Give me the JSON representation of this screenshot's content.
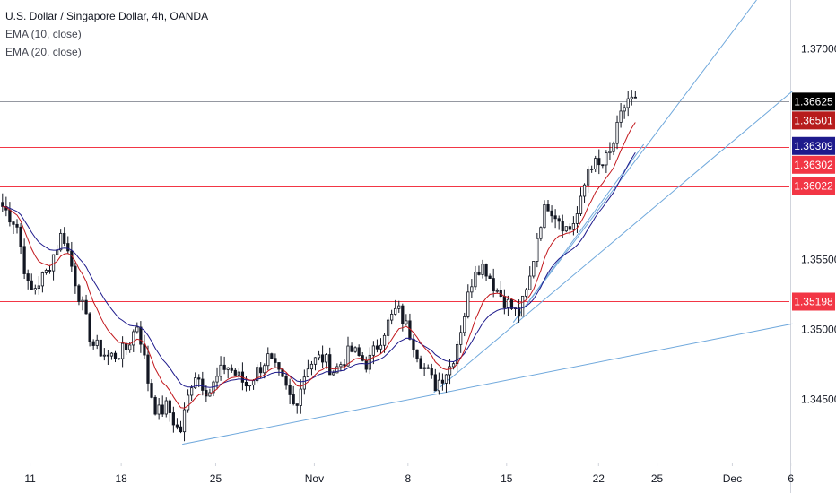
{
  "legend": {
    "title": "U.S. Dollar / Singapore Dollar, 4h, OANDA",
    "ema10": "EMA (10, close)",
    "ema20": "EMA (20, close)"
  },
  "chart_data": {
    "type": "candlestick",
    "symbol": "USD/SGD",
    "timeframe": "4h",
    "source": "OANDA",
    "ylim": [
      1.3405,
      1.3735
    ],
    "y_ticks": [
      "1.37000",
      "1.35500",
      "1.35000",
      "1.34500"
    ],
    "y_tick_values": [
      1.37,
      1.355,
      1.35,
      1.345
    ],
    "x_ticks": [
      "11",
      "18",
      "25",
      "Nov",
      "8",
      "15",
      "22",
      "25",
      "Dec",
      "6"
    ],
    "grid": false,
    "colors": {
      "up": "#ffffff",
      "down": "#131722",
      "ema10": "#c2181d",
      "ema20": "#1e1a8c",
      "level": "#f23645",
      "trendline": "#6fa8dc",
      "last_price": "#000000"
    },
    "price_labels": [
      {
        "text": "1.36625",
        "value": 1.36625,
        "bg": "#000000"
      },
      {
        "text": "1.36501",
        "value": 1.36501,
        "bg": "#b71c1c"
      },
      {
        "text": "1.36309",
        "value": 1.36309,
        "bg": "#1e1a8c"
      },
      {
        "text": "1.36302",
        "value": 1.36302,
        "bg": "#f23645"
      },
      {
        "text": "1.36022",
        "value": 1.36022,
        "bg": "#f23645"
      },
      {
        "text": "1.35198",
        "value": 1.35198,
        "bg": "#f23645"
      }
    ],
    "horizontal_levels": [
      1.36302,
      1.36022,
      1.35198
    ],
    "last_price": 1.36625,
    "trendlines": [
      {
        "from": [
          0.218,
          1.3418
        ],
        "to": [
          0.948,
          1.3504
        ]
      },
      {
        "from": [
          0.519,
          1.3455
        ],
        "to": [
          0.948,
          1.367
        ]
      },
      {
        "from": [
          0.614,
          1.3505
        ],
        "to": [
          0.905,
          1.3735
        ]
      },
      {
        "from": [
          0.614,
          1.3505
        ],
        "to": [
          0.77,
          1.3632
        ]
      }
    ],
    "anchors": [
      [
        0.0,
        1.359
      ],
      [
        0.02,
        1.3575
      ],
      [
        0.035,
        1.3525
      ],
      [
        0.055,
        1.354
      ],
      [
        0.075,
        1.357
      ],
      [
        0.09,
        1.3535
      ],
      [
        0.11,
        1.349
      ],
      [
        0.13,
        1.348
      ],
      [
        0.15,
        1.3485
      ],
      [
        0.165,
        1.3505
      ],
      [
        0.178,
        1.346
      ],
      [
        0.188,
        1.344
      ],
      [
        0.2,
        1.3445
      ],
      [
        0.215,
        1.3425
      ],
      [
        0.232,
        1.347
      ],
      [
        0.25,
        1.3455
      ],
      [
        0.27,
        1.3475
      ],
      [
        0.295,
        1.346
      ],
      [
        0.32,
        1.348
      ],
      [
        0.34,
        1.346
      ],
      [
        0.352,
        1.3445
      ],
      [
        0.368,
        1.3475
      ],
      [
        0.385,
        1.348
      ],
      [
        0.4,
        1.347
      ],
      [
        0.42,
        1.3485
      ],
      [
        0.44,
        1.3475
      ],
      [
        0.46,
        1.35
      ],
      [
        0.475,
        1.3515
      ],
      [
        0.492,
        1.3495
      ],
      [
        0.505,
        1.3475
      ],
      [
        0.52,
        1.346
      ],
      [
        0.54,
        1.3475
      ],
      [
        0.555,
        1.351
      ],
      [
        0.568,
        1.3545
      ],
      [
        0.58,
        1.3545
      ],
      [
        0.592,
        1.353
      ],
      [
        0.605,
        1.352
      ],
      [
        0.62,
        1.351
      ],
      [
        0.632,
        1.353
      ],
      [
        0.645,
        1.3575
      ],
      [
        0.655,
        1.359
      ],
      [
        0.668,
        1.358
      ],
      [
        0.68,
        1.357
      ],
      [
        0.693,
        1.3585
      ],
      [
        0.705,
        1.362
      ],
      [
        0.718,
        1.3615
      ],
      [
        0.73,
        1.3625
      ],
      [
        0.742,
        1.365
      ],
      [
        0.75,
        1.3665
      ],
      [
        0.76,
        1.3662
      ]
    ]
  }
}
